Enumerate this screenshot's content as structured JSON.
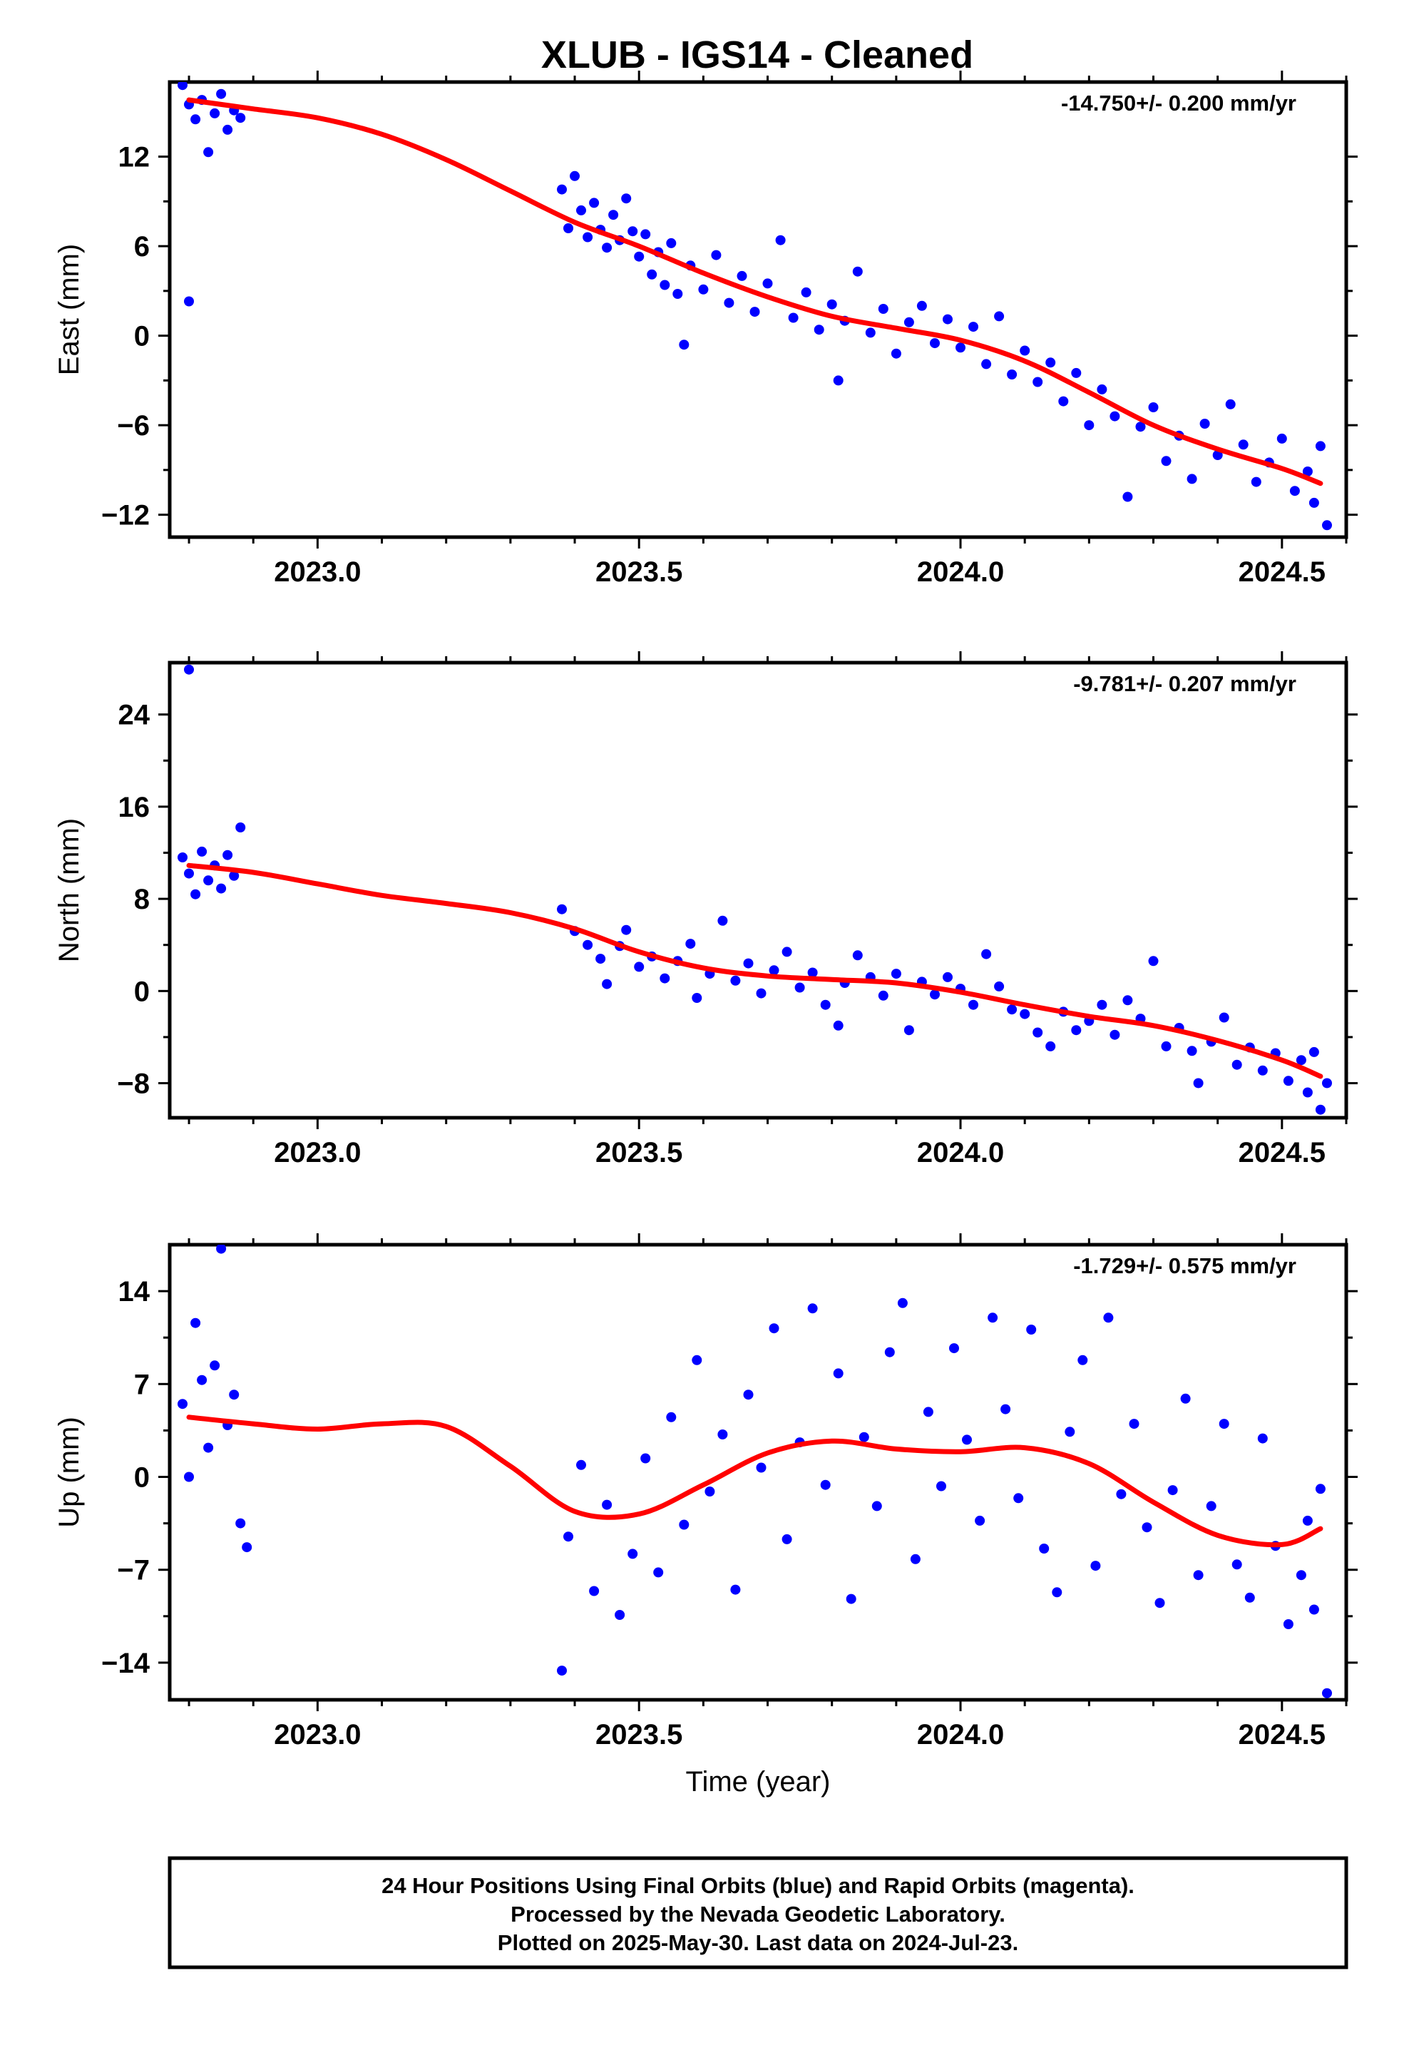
{
  "title": "XLUB  - IGS14 - Cleaned",
  "footer": {
    "lines": [
      "24 Hour Positions Using Final Orbits (blue) and Rapid Orbits (magenta).",
      "Processed by the Nevada Geodetic Laboratory.",
      "Plotted on 2025-May-30. Last data on 2024-Jul-23."
    ]
  },
  "colors": {
    "points": "#0000ff",
    "fit": "#ff0000",
    "frame": "#000000"
  },
  "chart_data": [
    {
      "type": "scatter",
      "name": "east",
      "ylabel": "East (mm)",
      "xlabel": "",
      "rate_text": "-14.750+/- 0.200 mm/yr",
      "xlim": [
        2022.77,
        2024.6
      ],
      "ylim": [
        -13.5,
        17.0
      ],
      "xticks": [
        "2023.0",
        "2023.5",
        "2024.0",
        "2024.5"
      ],
      "yticks": [
        12,
        6,
        0,
        -6,
        -12
      ],
      "ytick_labels": [
        "12",
        "6",
        "0",
        "−6",
        "−12"
      ],
      "fit": [
        [
          2022.8,
          15.8
        ],
        [
          2022.9,
          15.2
        ],
        [
          2023.0,
          14.6
        ],
        [
          2023.1,
          13.5
        ],
        [
          2023.2,
          11.8
        ],
        [
          2023.3,
          9.7
        ],
        [
          2023.4,
          7.6
        ],
        [
          2023.5,
          6.0
        ],
        [
          2023.6,
          4.2
        ],
        [
          2023.7,
          2.6
        ],
        [
          2023.8,
          1.3
        ],
        [
          2023.9,
          0.5
        ],
        [
          2024.0,
          -0.3
        ],
        [
          2024.1,
          -1.7
        ],
        [
          2024.2,
          -3.8
        ],
        [
          2024.3,
          -6.0
        ],
        [
          2024.4,
          -7.6
        ],
        [
          2024.5,
          -8.9
        ],
        [
          2024.56,
          -9.9
        ]
      ],
      "points": [
        [
          2022.79,
          16.8
        ],
        [
          2022.8,
          15.5
        ],
        [
          2022.81,
          14.5
        ],
        [
          2022.82,
          15.8
        ],
        [
          2022.83,
          12.3
        ],
        [
          2022.84,
          14.9
        ],
        [
          2022.85,
          16.2
        ],
        [
          2022.86,
          13.8
        ],
        [
          2022.87,
          15.1
        ],
        [
          2022.8,
          2.3
        ],
        [
          2022.88,
          14.6
        ],
        [
          2023.38,
          9.8
        ],
        [
          2023.39,
          7.2
        ],
        [
          2023.4,
          10.7
        ],
        [
          2023.41,
          8.4
        ],
        [
          2023.42,
          6.6
        ],
        [
          2023.43,
          8.9
        ],
        [
          2023.44,
          7.1
        ],
        [
          2023.45,
          5.9
        ],
        [
          2023.46,
          8.1
        ],
        [
          2023.47,
          6.4
        ],
        [
          2023.48,
          9.2
        ],
        [
          2023.49,
          7.0
        ],
        [
          2023.5,
          5.3
        ],
        [
          2023.51,
          6.8
        ],
        [
          2023.52,
          4.1
        ],
        [
          2023.53,
          5.6
        ],
        [
          2023.54,
          3.4
        ],
        [
          2023.55,
          6.2
        ],
        [
          2023.56,
          2.8
        ],
        [
          2023.57,
          -0.6
        ],
        [
          2023.58,
          4.7
        ],
        [
          2023.6,
          3.1
        ],
        [
          2023.62,
          5.4
        ],
        [
          2023.64,
          2.2
        ],
        [
          2023.66,
          4.0
        ],
        [
          2023.68,
          1.6
        ],
        [
          2023.7,
          3.5
        ],
        [
          2023.72,
          6.4
        ],
        [
          2023.74,
          1.2
        ],
        [
          2023.76,
          2.9
        ],
        [
          2023.78,
          0.4
        ],
        [
          2023.8,
          2.1
        ],
        [
          2023.81,
          -3.0
        ],
        [
          2023.82,
          1.0
        ],
        [
          2023.84,
          4.3
        ],
        [
          2023.86,
          0.2
        ],
        [
          2023.88,
          1.8
        ],
        [
          2023.9,
          -1.2
        ],
        [
          2023.92,
          0.9
        ],
        [
          2023.94,
          2.0
        ],
        [
          2023.96,
          -0.5
        ],
        [
          2023.98,
          1.1
        ],
        [
          2024.0,
          -0.8
        ],
        [
          2024.02,
          0.6
        ],
        [
          2024.04,
          -1.9
        ],
        [
          2024.06,
          1.3
        ],
        [
          2024.08,
          -2.6
        ],
        [
          2024.1,
          -1.0
        ],
        [
          2024.12,
          -3.1
        ],
        [
          2024.14,
          -1.8
        ],
        [
          2024.16,
          -4.4
        ],
        [
          2024.18,
          -2.5
        ],
        [
          2024.2,
          -6.0
        ],
        [
          2024.22,
          -3.6
        ],
        [
          2024.24,
          -5.4
        ],
        [
          2024.26,
          -10.8
        ],
        [
          2024.28,
          -6.1
        ],
        [
          2024.3,
          -4.8
        ],
        [
          2024.32,
          -8.4
        ],
        [
          2024.34,
          -6.7
        ],
        [
          2024.36,
          -9.6
        ],
        [
          2024.38,
          -5.9
        ],
        [
          2024.4,
          -8.0
        ],
        [
          2024.42,
          -4.6
        ],
        [
          2024.44,
          -7.3
        ],
        [
          2024.46,
          -9.8
        ],
        [
          2024.48,
          -8.5
        ],
        [
          2024.5,
          -6.9
        ],
        [
          2024.52,
          -10.4
        ],
        [
          2024.54,
          -9.1
        ],
        [
          2024.55,
          -11.2
        ],
        [
          2024.56,
          -7.4
        ],
        [
          2024.57,
          -12.7
        ]
      ]
    },
    {
      "type": "scatter",
      "name": "north",
      "ylabel": "North (mm)",
      "xlabel": "",
      "rate_text": "-9.781+/- 0.207 mm/yr",
      "xlim": [
        2022.77,
        2024.6
      ],
      "ylim": [
        -11.0,
        28.5
      ],
      "xticks": [
        "2023.0",
        "2023.5",
        "2024.0",
        "2024.5"
      ],
      "yticks": [
        24,
        16,
        8,
        0,
        -8
      ],
      "ytick_labels": [
        "24",
        "16",
        "8",
        "0",
        "−8"
      ],
      "fit": [
        [
          2022.8,
          10.9
        ],
        [
          2022.9,
          10.3
        ],
        [
          2023.0,
          9.3
        ],
        [
          2023.1,
          8.3
        ],
        [
          2023.2,
          7.6
        ],
        [
          2023.3,
          6.8
        ],
        [
          2023.4,
          5.4
        ],
        [
          2023.5,
          3.4
        ],
        [
          2023.6,
          2.0
        ],
        [
          2023.7,
          1.3
        ],
        [
          2023.8,
          1.0
        ],
        [
          2023.9,
          0.7
        ],
        [
          2024.0,
          -0.1
        ],
        [
          2024.1,
          -1.2
        ],
        [
          2024.2,
          -2.2
        ],
        [
          2024.3,
          -3.0
        ],
        [
          2024.4,
          -4.3
        ],
        [
          2024.5,
          -6.0
        ],
        [
          2024.56,
          -7.4
        ]
      ],
      "points": [
        [
          2022.8,
          27.9
        ],
        [
          2022.79,
          11.6
        ],
        [
          2022.8,
          10.2
        ],
        [
          2022.81,
          8.4
        ],
        [
          2022.82,
          12.1
        ],
        [
          2022.83,
          9.6
        ],
        [
          2022.84,
          10.9
        ],
        [
          2022.85,
          8.9
        ],
        [
          2022.86,
          11.8
        ],
        [
          2022.87,
          10.0
        ],
        [
          2022.88,
          14.2
        ],
        [
          2023.38,
          7.1
        ],
        [
          2023.4,
          5.2
        ],
        [
          2023.42,
          4.0
        ],
        [
          2023.44,
          2.8
        ],
        [
          2023.45,
          0.6
        ],
        [
          2023.47,
          3.9
        ],
        [
          2023.48,
          5.3
        ],
        [
          2023.5,
          2.1
        ],
        [
          2023.52,
          3.0
        ],
        [
          2023.54,
          1.1
        ],
        [
          2023.56,
          2.6
        ],
        [
          2023.58,
          4.1
        ],
        [
          2023.59,
          -0.6
        ],
        [
          2023.61,
          1.5
        ],
        [
          2023.63,
          6.1
        ],
        [
          2023.65,
          0.9
        ],
        [
          2023.67,
          2.4
        ],
        [
          2023.69,
          -0.2
        ],
        [
          2023.71,
          1.8
        ],
        [
          2023.73,
          3.4
        ],
        [
          2023.75,
          0.3
        ],
        [
          2023.77,
          1.6
        ],
        [
          2023.79,
          -1.2
        ],
        [
          2023.81,
          -3.0
        ],
        [
          2023.82,
          0.7
        ],
        [
          2023.84,
          3.1
        ],
        [
          2023.86,
          1.2
        ],
        [
          2023.88,
          -0.4
        ],
        [
          2023.9,
          1.5
        ],
        [
          2023.92,
          -3.4
        ],
        [
          2023.94,
          0.8
        ],
        [
          2023.96,
          -0.3
        ],
        [
          2023.98,
          1.2
        ],
        [
          2024.0,
          0.2
        ],
        [
          2024.02,
          -1.2
        ],
        [
          2024.04,
          3.2
        ],
        [
          2024.06,
          0.4
        ],
        [
          2024.08,
          -1.6
        ],
        [
          2024.1,
          -2.0
        ],
        [
          2024.12,
          -3.6
        ],
        [
          2024.14,
          -4.8
        ],
        [
          2024.16,
          -1.8
        ],
        [
          2024.18,
          -3.4
        ],
        [
          2024.2,
          -2.6
        ],
        [
          2024.22,
          -1.2
        ],
        [
          2024.24,
          -3.8
        ],
        [
          2024.26,
          -0.8
        ],
        [
          2024.28,
          -2.4
        ],
        [
          2024.3,
          2.6
        ],
        [
          2024.32,
          -4.8
        ],
        [
          2024.34,
          -3.2
        ],
        [
          2024.36,
          -5.2
        ],
        [
          2024.37,
          -8.0
        ],
        [
          2024.39,
          -4.4
        ],
        [
          2024.41,
          -2.3
        ],
        [
          2024.43,
          -6.4
        ],
        [
          2024.45,
          -4.9
        ],
        [
          2024.47,
          -6.9
        ],
        [
          2024.49,
          -5.4
        ],
        [
          2024.51,
          -7.8
        ],
        [
          2024.53,
          -6.0
        ],
        [
          2024.54,
          -8.8
        ],
        [
          2024.55,
          -5.3
        ],
        [
          2024.56,
          -10.3
        ],
        [
          2024.57,
          -8.0
        ]
      ]
    },
    {
      "type": "scatter",
      "name": "up",
      "ylabel": "Up (mm)",
      "xlabel": "Time (year)",
      "rate_text": "-1.729+/- 0.575 mm/yr",
      "xlim": [
        2022.77,
        2024.6
      ],
      "ylim": [
        -16.8,
        17.5
      ],
      "xticks": [
        "2023.0",
        "2023.5",
        "2024.0",
        "2024.5"
      ],
      "yticks": [
        14,
        7,
        0,
        -7,
        -14
      ],
      "ytick_labels": [
        "14",
        "7",
        "0",
        "−7",
        "−14"
      ],
      "fit": [
        [
          2022.8,
          4.5
        ],
        [
          2022.9,
          4.0
        ],
        [
          2023.0,
          3.6
        ],
        [
          2023.1,
          4.0
        ],
        [
          2023.2,
          3.8
        ],
        [
          2023.3,
          0.8
        ],
        [
          2023.4,
          -2.6
        ],
        [
          2023.5,
          -2.8
        ],
        [
          2023.6,
          -0.6
        ],
        [
          2023.7,
          1.8
        ],
        [
          2023.8,
          2.7
        ],
        [
          2023.9,
          2.1
        ],
        [
          2024.0,
          1.9
        ],
        [
          2024.1,
          2.2
        ],
        [
          2024.2,
          1.0
        ],
        [
          2024.3,
          -1.9
        ],
        [
          2024.4,
          -4.4
        ],
        [
          2024.5,
          -5.1
        ],
        [
          2024.56,
          -3.9
        ]
      ],
      "points": [
        [
          2022.79,
          5.5
        ],
        [
          2022.8,
          0.0
        ],
        [
          2022.81,
          11.6
        ],
        [
          2022.82,
          7.3
        ],
        [
          2022.83,
          2.2
        ],
        [
          2022.84,
          8.4
        ],
        [
          2022.85,
          17.2
        ],
        [
          2022.86,
          3.9
        ],
        [
          2022.87,
          6.2
        ],
        [
          2022.88,
          -3.5
        ],
        [
          2022.89,
          -5.3
        ],
        [
          2023.38,
          -14.6
        ],
        [
          2023.39,
          -4.5
        ],
        [
          2023.41,
          0.9
        ],
        [
          2023.43,
          -8.6
        ],
        [
          2023.45,
          -2.1
        ],
        [
          2023.47,
          -10.4
        ],
        [
          2023.49,
          -5.8
        ],
        [
          2023.51,
          1.4
        ],
        [
          2023.53,
          -7.2
        ],
        [
          2023.55,
          4.5
        ],
        [
          2023.57,
          -3.6
        ],
        [
          2023.59,
          8.8
        ],
        [
          2023.61,
          -1.1
        ],
        [
          2023.63,
          3.2
        ],
        [
          2023.65,
          -8.5
        ],
        [
          2023.67,
          6.2
        ],
        [
          2023.69,
          0.7
        ],
        [
          2023.71,
          11.2
        ],
        [
          2023.73,
          -4.7
        ],
        [
          2023.75,
          2.6
        ],
        [
          2023.77,
          12.7
        ],
        [
          2023.79,
          -0.6
        ],
        [
          2023.81,
          7.8
        ],
        [
          2023.83,
          -9.2
        ],
        [
          2023.85,
          3.0
        ],
        [
          2023.87,
          -2.2
        ],
        [
          2023.89,
          9.4
        ],
        [
          2023.91,
          13.1
        ],
        [
          2023.93,
          -6.2
        ],
        [
          2023.95,
          4.9
        ],
        [
          2023.97,
          -0.7
        ],
        [
          2023.99,
          9.7
        ],
        [
          2024.01,
          2.8
        ],
        [
          2024.03,
          -3.3
        ],
        [
          2024.05,
          12.0
        ],
        [
          2024.07,
          5.1
        ],
        [
          2024.09,
          -1.6
        ],
        [
          2024.11,
          11.1
        ],
        [
          2024.13,
          -5.4
        ],
        [
          2024.15,
          -8.7
        ],
        [
          2024.17,
          3.4
        ],
        [
          2024.19,
          8.8
        ],
        [
          2024.21,
          -6.7
        ],
        [
          2024.23,
          12.0
        ],
        [
          2024.25,
          -1.3
        ],
        [
          2024.27,
          4.0
        ],
        [
          2024.29,
          -3.8
        ],
        [
          2024.31,
          -9.5
        ],
        [
          2024.33,
          -1.0
        ],
        [
          2024.35,
          5.9
        ],
        [
          2024.37,
          -7.4
        ],
        [
          2024.39,
          -2.2
        ],
        [
          2024.41,
          4.0
        ],
        [
          2024.43,
          -6.6
        ],
        [
          2024.45,
          -9.1
        ],
        [
          2024.47,
          2.9
        ],
        [
          2024.49,
          -5.2
        ],
        [
          2024.51,
          -11.1
        ],
        [
          2024.53,
          -7.4
        ],
        [
          2024.54,
          -3.3
        ],
        [
          2024.55,
          -10.0
        ],
        [
          2024.56,
          -0.9
        ],
        [
          2024.57,
          -16.3
        ]
      ]
    }
  ]
}
